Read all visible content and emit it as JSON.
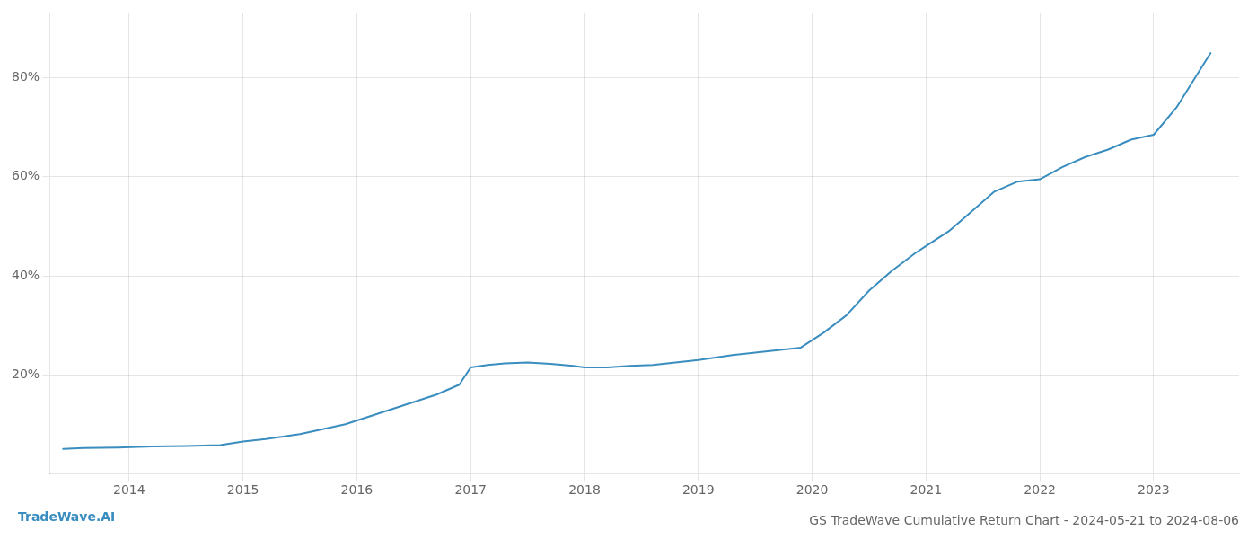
{
  "chart_data": {
    "type": "line",
    "title": "GS TradeWave Cumulative Return Chart - 2024-05-21 to 2024-08-06",
    "annotations": [
      {
        "text": "TradeWave.AI",
        "color": "#3a8dbf"
      }
    ],
    "x": [
      2013.42,
      2013.6,
      2013.9,
      2014.2,
      2014.5,
      2014.8,
      2015.0,
      2015.2,
      2015.5,
      2015.7,
      2015.9,
      2016.1,
      2016.3,
      2016.5,
      2016.7,
      2016.9,
      2017.0,
      2017.15,
      2017.3,
      2017.5,
      2017.7,
      2017.9,
      2018.0,
      2018.2,
      2018.4,
      2018.6,
      2018.8,
      2019.0,
      2019.15,
      2019.3,
      2019.5,
      2019.7,
      2019.9,
      2020.0,
      2020.1,
      2020.3,
      2020.5,
      2020.7,
      2020.9,
      2021.0,
      2021.2,
      2021.4,
      2021.6,
      2021.8,
      2022.0,
      2022.2,
      2022.4,
      2022.6,
      2022.8,
      2023.0,
      2023.2,
      2023.5
    ],
    "values": [
      5.0,
      5.2,
      5.3,
      5.5,
      5.6,
      5.8,
      6.5,
      7.0,
      8.0,
      9.0,
      10.0,
      11.5,
      13.0,
      14.5,
      16.0,
      18.0,
      21.5,
      22.0,
      22.3,
      22.5,
      22.2,
      21.8,
      21.5,
      21.5,
      21.8,
      22.0,
      22.5,
      23.0,
      23.5,
      24.0,
      24.5,
      25.0,
      25.5,
      27.0,
      28.5,
      32.0,
      37.0,
      41.0,
      44.5,
      46.0,
      49.0,
      53.0,
      57.0,
      59.0,
      59.5,
      62.0,
      64.0,
      65.5,
      67.5,
      68.5,
      74.0,
      85.0
    ],
    "color": "#3a8dbf",
    "xlim": [
      2013.3,
      2023.75
    ],
    "xticks": [
      2014,
      2015,
      2016,
      2017,
      2018,
      2019,
      2020,
      2021,
      2022,
      2023
    ],
    "ylim": [
      0,
      93
    ],
    "yticks": [
      {
        "value": 20,
        "label": "20%"
      },
      {
        "value": 40,
        "label": "40%"
      },
      {
        "value": 60,
        "label": "60%"
      },
      {
        "value": 80,
        "label": "80%"
      }
    ],
    "grid": true
  }
}
